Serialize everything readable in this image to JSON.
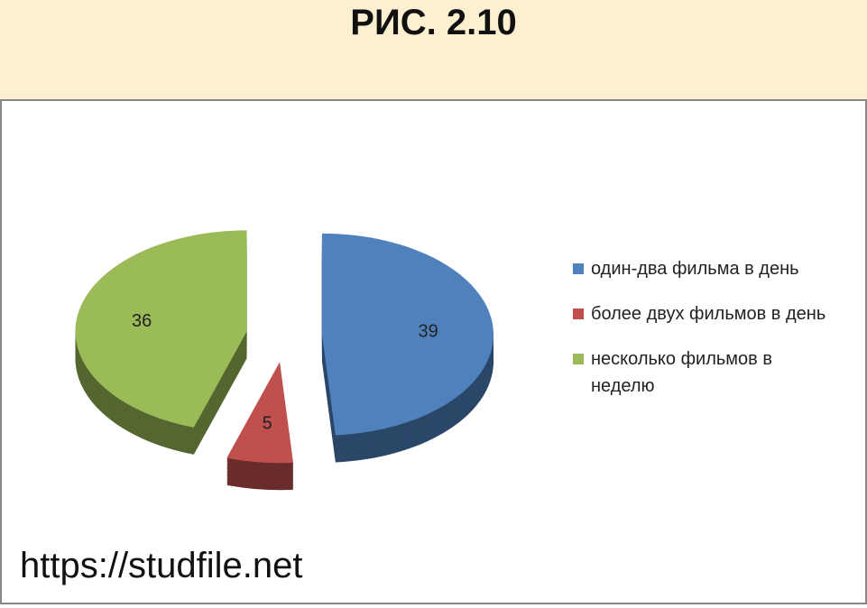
{
  "header": {
    "title": "РИС. 2.10"
  },
  "chart_data": {
    "type": "pie",
    "categories": [
      "один-два фильма в день",
      "более двух фильмов в день",
      "несколько фильмов в неделю"
    ],
    "values": [
      39,
      5,
      36
    ],
    "colors": [
      "#4f81bd",
      "#c0504d",
      "#9bbb59"
    ],
    "legend": "right"
  },
  "watermark": "https://studfile.net"
}
